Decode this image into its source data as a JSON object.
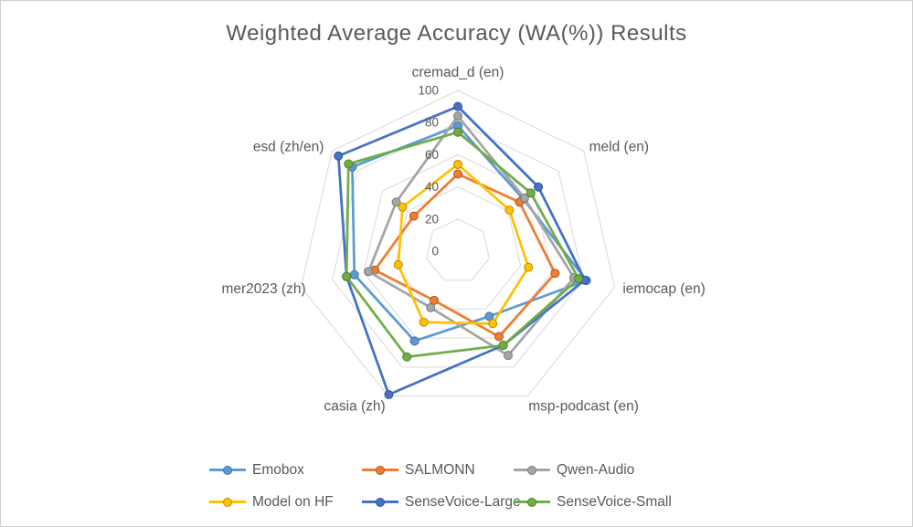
{
  "title": "Weighted Average Accuracy (WA(%)) Results",
  "chart_data": {
    "type": "radar",
    "title": "Weighted Average Accuracy (WA(%)) Results",
    "categories": [
      "cremad_d (en)",
      "meld (en)",
      "iemocap (en)",
      "msp-podcast (en)",
      "casia (zh)",
      "mer2023 (zh)",
      "esd  (zh/en)"
    ],
    "series": [
      {
        "name": "Emobox",
        "color": "#5B9BD5",
        "marker_border": "#41719C",
        "values": [
          78,
          52,
          82,
          45,
          62,
          66,
          84
        ]
      },
      {
        "name": "SALMONN",
        "color": "#ED7D31",
        "marker_border": "#AE5A21",
        "values": [
          48,
          49,
          62,
          59,
          34,
          53,
          35
        ]
      },
      {
        "name": "Qwen-Audio",
        "color": "#A5A5A5",
        "marker_border": "#7B7B7B",
        "values": [
          84,
          53,
          74,
          72,
          39,
          57,
          49
        ]
      },
      {
        "name": "Model on HF",
        "color": "#FFC000",
        "marker_border": "#BC8C00",
        "values": [
          54,
          41,
          45,
          50,
          49,
          38,
          44
        ]
      },
      {
        "name": "SenseVoice-Large",
        "color": "#4472C4",
        "marker_border": "#2F5597",
        "values": [
          90,
          64,
          81,
          65,
          99,
          71,
          95
        ]
      },
      {
        "name": "SenseVoice-Small",
        "color": "#70AD47",
        "marker_border": "#507E32",
        "values": [
          74,
          58,
          77,
          65,
          73,
          71,
          87
        ]
      }
    ],
    "raxis": {
      "min": 0,
      "max": 100,
      "step": 20,
      "tick_labels": [
        "0",
        "20",
        "40",
        "60",
        "80",
        "100"
      ]
    },
    "legend_position": "bottom",
    "grid": true,
    "colors": {
      "grid": "#D9D9D9",
      "text": "#595959",
      "background": "#FFFFFF",
      "frame_border": "#CFCFCF"
    }
  }
}
